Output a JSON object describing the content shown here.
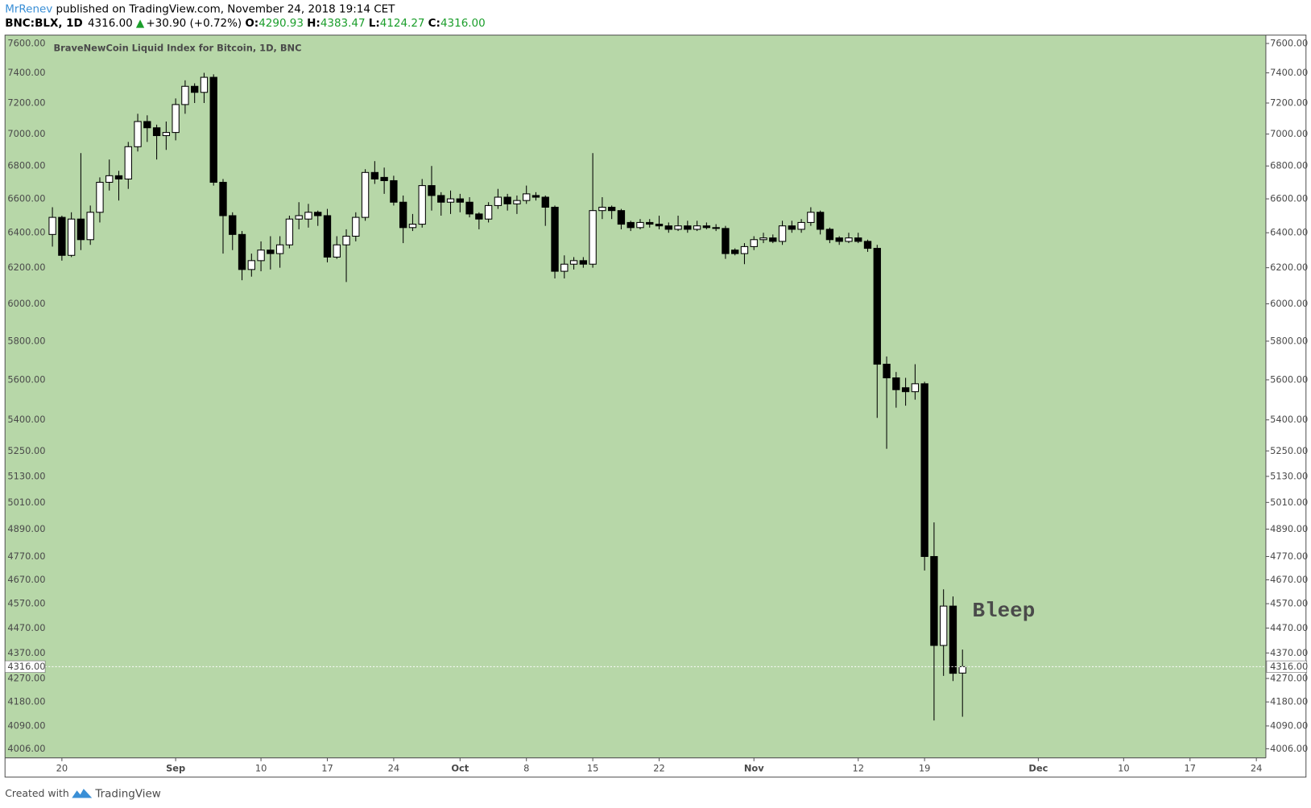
{
  "header": {
    "author": "MrRenev",
    "published": "published on TradingView.com, November 24, 2018 19:14 CET",
    "symbol": "BNC:BLX, 1D",
    "last": "4316.00",
    "arrow": "▲",
    "change": "+30.90 (+0.72%)",
    "o_label": "O:",
    "open": "4290.93",
    "h_label": "H:",
    "high": "4383.47",
    "l_label": "L:",
    "low": "4124.27",
    "c_label": "C:",
    "close": "4316.00"
  },
  "chart_data": {
    "type": "candlestick",
    "title": "BraveNewCoin Liquid Index for Bitcoin, 1D, BNC",
    "x": [
      "08-19",
      "08-20",
      "08-21",
      "08-22",
      "08-23",
      "08-24",
      "08-25",
      "08-26",
      "08-27",
      "08-28",
      "08-29",
      "08-30",
      "08-31",
      "09-01",
      "09-02",
      "09-03",
      "09-04",
      "09-05",
      "09-06",
      "09-07",
      "09-08",
      "09-09",
      "09-10",
      "09-11",
      "09-12",
      "09-13",
      "09-14",
      "09-15",
      "09-16",
      "09-17",
      "09-18",
      "09-19",
      "09-20",
      "09-21",
      "09-22",
      "09-23",
      "09-24",
      "09-25",
      "09-26",
      "09-27",
      "09-28",
      "09-29",
      "09-30",
      "10-01",
      "10-02",
      "10-03",
      "10-04",
      "10-05",
      "10-06",
      "10-07",
      "10-08",
      "10-09",
      "10-10",
      "10-11",
      "10-12",
      "10-13",
      "10-14",
      "10-15",
      "10-16",
      "10-17",
      "10-18",
      "10-19",
      "10-20",
      "10-21",
      "10-22",
      "10-23",
      "10-24",
      "10-25",
      "10-26",
      "10-27",
      "10-28",
      "10-29",
      "10-30",
      "10-31",
      "11-01",
      "11-02",
      "11-03",
      "11-04",
      "11-05",
      "11-06",
      "11-07",
      "11-08",
      "11-09",
      "11-10",
      "11-11",
      "11-12",
      "11-13",
      "11-14",
      "11-15",
      "11-16",
      "11-17",
      "11-18",
      "11-19",
      "11-20",
      "11-21",
      "11-22",
      "11-23"
    ],
    "open": [
      6390,
      6490,
      6270,
      6480,
      6360,
      6520,
      6700,
      6740,
      6720,
      6920,
      7080,
      7040,
      6990,
      7010,
      7190,
      7310,
      7270,
      7370,
      6700,
      6500,
      6390,
      6190,
      6240,
      6300,
      6280,
      6330,
      6480,
      6480,
      6520,
      6500,
      6260,
      6330,
      6380,
      6490,
      6760,
      6730,
      6710,
      6580,
      6430,
      6450,
      6680,
      6620,
      6580,
      6600,
      6580,
      6510,
      6480,
      6560,
      6610,
      6570,
      6590,
      6620,
      6610,
      6550,
      6180,
      6220,
      6240,
      6220,
      6530,
      6550,
      6530,
      6460,
      6430,
      6460,
      6450,
      6440,
      6420,
      6440,
      6420,
      6440,
      6430,
      6425,
      6300,
      6280,
      6320,
      6360,
      6370,
      6350,
      6440,
      6420,
      6460,
      6520,
      6420,
      6370,
      6350,
      6370,
      6350,
      6310,
      5680,
      5610,
      5560,
      5540,
      5580,
      4770,
      4400,
      4560,
      4290.93
    ],
    "high": [
      6550,
      6500,
      6520,
      6880,
      6560,
      6730,
      6840,
      6770,
      6950,
      7130,
      7120,
      7060,
      7080,
      7230,
      7350,
      7330,
      7400,
      7390,
      6720,
      6520,
      6410,
      6280,
      6350,
      6380,
      6380,
      6500,
      6580,
      6570,
      6530,
      6540,
      6380,
      6420,
      6520,
      6780,
      6830,
      6790,
      6740,
      6620,
      6510,
      6720,
      6800,
      6640,
      6650,
      6630,
      6610,
      6520,
      6580,
      6660,
      6630,
      6620,
      6680,
      6640,
      6620,
      6560,
      6270,
      6260,
      6260,
      6880,
      6610,
      6560,
      6540,
      6470,
      6480,
      6480,
      6500,
      6460,
      6500,
      6470,
      6470,
      6460,
      6450,
      6440,
      6310,
      6340,
      6380,
      6400,
      6390,
      6470,
      6470,
      6480,
      6550,
      6530,
      6430,
      6380,
      6400,
      6400,
      6360,
      6330,
      5720,
      5640,
      5610,
      5680,
      5590,
      4920,
      4630,
      4600,
      4383.47
    ],
    "low": [
      6320,
      6240,
      6260,
      6300,
      6330,
      6460,
      6650,
      6590,
      6660,
      6890,
      6950,
      6840,
      6900,
      6960,
      7130,
      7200,
      7200,
      6680,
      6280,
      6300,
      6130,
      6150,
      6180,
      6190,
      6200,
      6310,
      6420,
      6430,
      6440,
      6230,
      6250,
      6120,
      6350,
      6470,
      6690,
      6630,
      6560,
      6340,
      6410,
      6430,
      6530,
      6500,
      6510,
      6520,
      6490,
      6420,
      6460,
      6540,
      6530,
      6510,
      6570,
      6590,
      6440,
      6140,
      6140,
      6190,
      6200,
      6200,
      6480,
      6480,
      6420,
      6410,
      6420,
      6430,
      6420,
      6400,
      6410,
      6400,
      6410,
      6420,
      6410,
      6250,
      6270,
      6220,
      6300,
      6340,
      6340,
      6330,
      6400,
      6400,
      6440,
      6390,
      6340,
      6330,
      6340,
      6340,
      6290,
      5410,
      5260,
      5460,
      5470,
      5500,
      4710,
      4110,
      4280,
      4260,
      4124.27
    ],
    "close": [
      6490,
      6270,
      6480,
      6360,
      6520,
      6700,
      6740,
      6720,
      6920,
      7080,
      7040,
      6990,
      7010,
      7190,
      7310,
      7270,
      7370,
      6700,
      6500,
      6390,
      6190,
      6240,
      6300,
      6280,
      6330,
      6480,
      6500,
      6520,
      6500,
      6260,
      6330,
      6380,
      6490,
      6760,
      6720,
      6710,
      6580,
      6430,
      6450,
      6680,
      6620,
      6580,
      6600,
      6580,
      6510,
      6480,
      6560,
      6610,
      6570,
      6590,
      6630,
      6610,
      6550,
      6180,
      6220,
      6240,
      6220,
      6530,
      6550,
      6530,
      6450,
      6430,
      6460,
      6450,
      6440,
      6420,
      6440,
      6420,
      6440,
      6430,
      6425,
      6280,
      6280,
      6320,
      6360,
      6370,
      6350,
      6440,
      6420,
      6460,
      6520,
      6420,
      6360,
      6350,
      6370,
      6350,
      6310,
      5680,
      5610,
      5550,
      5540,
      5580,
      4770,
      4400,
      4560,
      4290,
      4316
    ],
    "up_color": "#ffffff",
    "down_color": "#000000",
    "background": "#b7d7a8",
    "log_scale": true,
    "ylim": [
      3973,
      7658
    ],
    "yticks": [
      {
        "value": 7600,
        "label": "7600.00"
      },
      {
        "value": 7400,
        "label": "7400.00"
      },
      {
        "value": 7200,
        "label": "7200.00"
      },
      {
        "value": 7000,
        "label": "7000.00"
      },
      {
        "value": 6800,
        "label": "6800.00"
      },
      {
        "value": 6600,
        "label": "6600.00"
      },
      {
        "value": 6400,
        "label": "6400.00"
      },
      {
        "value": 6200,
        "label": "6200.00"
      },
      {
        "value": 6000,
        "label": "6000.00"
      },
      {
        "value": 5800,
        "label": "5800.00"
      },
      {
        "value": 5600,
        "label": "5600.00"
      },
      {
        "value": 5400,
        "label": "5400.00"
      },
      {
        "value": 5250,
        "label": "5250.00"
      },
      {
        "value": 5130,
        "label": "5130.00"
      },
      {
        "value": 5010,
        "label": "5010.00"
      },
      {
        "value": 4890,
        "label": "4890.00"
      },
      {
        "value": 4770,
        "label": "4770.00"
      },
      {
        "value": 4670,
        "label": "4670.00"
      },
      {
        "value": 4570,
        "label": "4570.00"
      },
      {
        "value": 4470,
        "label": "4470.00"
      },
      {
        "value": 4370,
        "label": "4370.00"
      },
      {
        "value": 4270,
        "label": "4270.00"
      },
      {
        "value": 4180,
        "label": "4180.00"
      },
      {
        "value": 4090,
        "label": "4090.00"
      },
      {
        "value": 4006,
        "label": "4006.00"
      }
    ],
    "xlim": [
      "08-14",
      "12-25"
    ],
    "xticks": [
      {
        "value": "08-20",
        "label": "20"
      },
      {
        "value": "09-01",
        "label": "Sep"
      },
      {
        "value": "09-10",
        "label": "10"
      },
      {
        "value": "09-17",
        "label": "17"
      },
      {
        "value": "09-24",
        "label": "24"
      },
      {
        "value": "10-01",
        "label": "Oct"
      },
      {
        "value": "10-08",
        "label": "8"
      },
      {
        "value": "10-15",
        "label": "15"
      },
      {
        "value": "10-22",
        "label": "22"
      },
      {
        "value": "11-01",
        "label": "Nov"
      },
      {
        "value": "11-12",
        "label": "12"
      },
      {
        "value": "11-19",
        "label": "19"
      },
      {
        "value": "12-01",
        "label": "Dec"
      },
      {
        "value": "12-10",
        "label": "10"
      },
      {
        "value": "12-17",
        "label": "17"
      },
      {
        "value": "12-24",
        "label": "24"
      }
    ],
    "last_price": {
      "value": 4316,
      "label": "4316.00"
    },
    "annotation": "Bleep"
  },
  "footer": {
    "created": "Created with",
    "brand": "TradingView"
  }
}
